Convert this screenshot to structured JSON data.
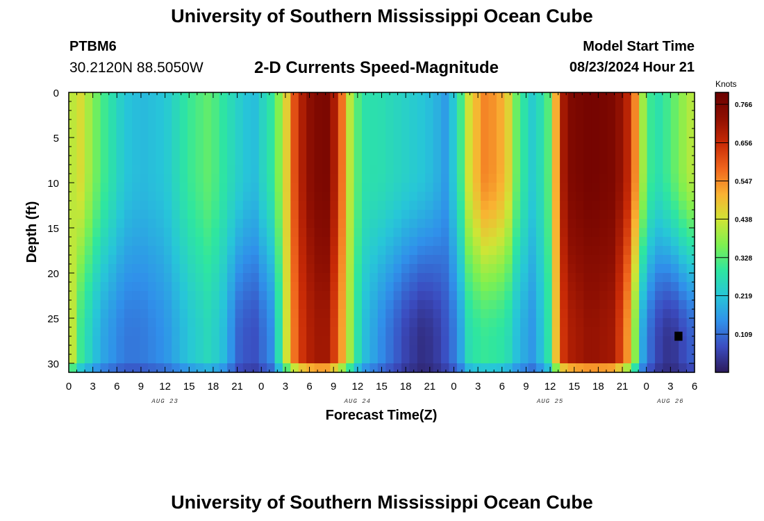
{
  "header": {
    "title": "University of Southern Mississippi Ocean Cube",
    "station_id": "PTBM6",
    "coordinates": "30.2120N  88.5050W",
    "chart_title": "2-D Currents Speed-Magnitude",
    "model_start_label": "Model Start Time",
    "model_start_time": "08/23/2024 Hour 21"
  },
  "footer": {
    "title": "University of Southern Mississippi Ocean Cube"
  },
  "chart_data": {
    "type": "heatmap",
    "title": "2-D Currents Speed-Magnitude",
    "xlabel": "Forecast Time(Z)",
    "ylabel": "Depth (ft)",
    "colorbar_label": "Knots",
    "x_range_hours": [
      0,
      78
    ],
    "x_start": "08/23/2024 00Z",
    "x_tick_labels": [
      "0",
      "3",
      "6",
      "9",
      "12",
      "15",
      "18",
      "21",
      "0",
      "3",
      "6",
      "9",
      "12",
      "15",
      "18",
      "21",
      "0",
      "3",
      "6",
      "9",
      "12",
      "15",
      "18",
      "21",
      "0",
      "3",
      "6"
    ],
    "date_labels": [
      {
        "label": "AUG 23",
        "hour": 12
      },
      {
        "label": "AUG 24",
        "hour": 36
      },
      {
        "label": "AUG 25",
        "hour": 60
      },
      {
        "label": "AUG 26",
        "hour": 75
      }
    ],
    "ylim": [
      0,
      31
    ],
    "y_ticks": [
      0,
      5,
      10,
      15,
      20,
      25,
      30
    ],
    "colorbar_ticks": [
      "0.766",
      "0.656",
      "0.547",
      "0.438",
      "0.328",
      "0.219",
      "0.109"
    ],
    "colorbar_range": [
      0,
      0.8
    ],
    "colormap_stops": [
      "#2c1a5b",
      "#3b4cc0",
      "#3090ea",
      "#27c6d8",
      "#2ee6a0",
      "#7ef050",
      "#cfe535",
      "#f9b232",
      "#f0661d",
      "#c82a06",
      "#8e0f02",
      "#6a0000"
    ],
    "speed_field": {
      "features": [
        {
          "hour": 0.5,
          "speed": 0.42
        },
        {
          "hour": 1.5,
          "speed": 0.45,
          "deep_speed": 0.3
        },
        {
          "hour": 4,
          "speed": 0.32,
          "deep_speed": 0.18
        },
        {
          "hour": 7,
          "speed": 0.22,
          "deep_speed": 0.12
        },
        {
          "hour": 9,
          "speed": 0.2,
          "deep_speed": 0.12
        },
        {
          "hour": 12,
          "speed": 0.22,
          "deep_speed": 0.15
        },
        {
          "hour": 15,
          "speed": 0.3,
          "deep_speed": 0.22
        },
        {
          "hour": 17.5,
          "speed": 0.34,
          "deep_speed": 0.26
        },
        {
          "hour": 19.5,
          "speed": 0.28,
          "deep_speed": 0.2
        },
        {
          "hour": 21,
          "speed": 0.24,
          "deep_speed": 0.1
        },
        {
          "hour": 23,
          "speed": 0.2,
          "deep_speed": 0.07
        },
        {
          "hour": 25.5,
          "speed": 0.3,
          "deep_speed": 0.15
        },
        {
          "hour": 27,
          "speed": 0.45,
          "deep_speed": 0.42
        },
        {
          "hour": 28.5,
          "speed": 0.66,
          "deep_speed": 0.62
        },
        {
          "hour": 30.5,
          "speed": 0.75,
          "deep_speed": 0.7
        },
        {
          "hour": 32,
          "speed": 0.77,
          "deep_speed": 0.71
        },
        {
          "hour": 33.5,
          "speed": 0.66,
          "deep_speed": 0.6
        },
        {
          "hour": 35,
          "speed": 0.42,
          "deep_speed": 0.4
        },
        {
          "hour": 36.5,
          "speed": 0.28,
          "deep_speed": 0.22
        },
        {
          "hour": 39,
          "speed": 0.27,
          "deep_speed": 0.14
        },
        {
          "hour": 42,
          "speed": 0.24,
          "deep_speed": 0.06
        },
        {
          "hour": 44,
          "speed": 0.22,
          "deep_speed": 0.03
        },
        {
          "hour": 45.5,
          "speed": 0.2,
          "deep_speed": 0.04
        },
        {
          "hour": 47,
          "speed": 0.16,
          "deep_speed": 0.08
        },
        {
          "hour": 48.5,
          "speed": 0.26,
          "deep_speed": 0.14
        },
        {
          "hour": 50,
          "speed": 0.46,
          "deep_speed": 0.28
        },
        {
          "hour": 52,
          "speed": 0.56,
          "deep_speed": 0.3
        },
        {
          "hour": 54.5,
          "speed": 0.5,
          "deep_speed": 0.28
        },
        {
          "hour": 56,
          "speed": 0.32,
          "deep_speed": 0.2
        },
        {
          "hour": 58,
          "speed": 0.22,
          "deep_speed": 0.15
        },
        {
          "hour": 60,
          "speed": 0.34,
          "deep_speed": 0.3
        },
        {
          "hour": 61,
          "speed": 0.58,
          "deep_speed": 0.56
        },
        {
          "hour": 62,
          "speed": 0.75,
          "deep_speed": 0.68
        },
        {
          "hour": 65,
          "speed": 0.78,
          "deep_speed": 0.72
        },
        {
          "hour": 68,
          "speed": 0.76,
          "deep_speed": 0.7
        },
        {
          "hour": 70,
          "speed": 0.65,
          "deep_speed": 0.5
        },
        {
          "hour": 71.5,
          "speed": 0.4,
          "deep_speed": 0.18
        },
        {
          "hour": 73,
          "speed": 0.26,
          "deep_speed": 0.07
        },
        {
          "hour": 75,
          "speed": 0.32,
          "deep_speed": 0.03
        },
        {
          "hour": 77,
          "speed": 0.4,
          "deep_speed": 0.08
        },
        {
          "hour": 78,
          "speed": 0.42,
          "deep_speed": 0.1
        }
      ],
      "missing_cell": {
        "hour": 76,
        "depth_ft": 27,
        "speed": 0.0
      }
    }
  }
}
